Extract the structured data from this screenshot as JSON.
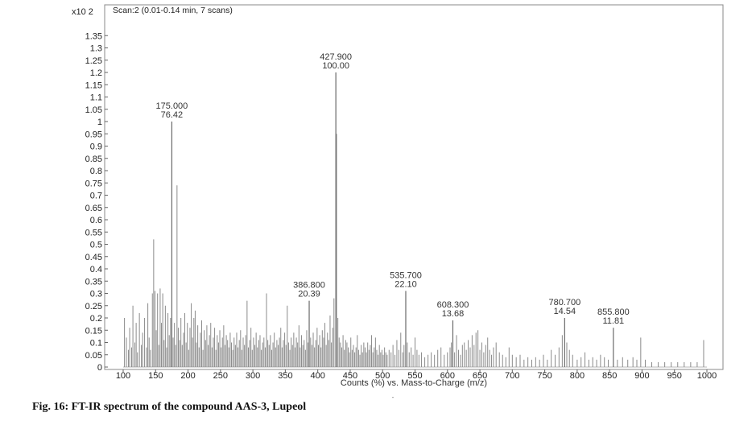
{
  "caption": "Fig. 16: FT-IR spectrum of the compound AAS-3, Lupeol",
  "chart_data": {
    "type": "bar",
    "title": "Scan:2 (0.01-0.14 min, 7 scans)",
    "xlabel": "Counts (%) vs. Mass-to-Charge (m/z)",
    "ylabel": "",
    "y_multiplier_label": "x10 2",
    "xlim": [
      100,
      1000
    ],
    "ylim": [
      0,
      1.4
    ],
    "x_ticks": [
      "100",
      "150",
      "200",
      "250",
      "300",
      "350",
      "400",
      "450",
      "500",
      "550",
      "600",
      "650",
      "700",
      "750",
      "800",
      "850",
      "900",
      "950",
      "1000"
    ],
    "y_ticks": [
      "0",
      "0.05",
      "0.1",
      "0.15",
      "0.2",
      "0.25",
      "0.3",
      "0.35",
      "0.4",
      "0.45",
      "0.5",
      "0.55",
      "0.6",
      "0.65",
      "0.7",
      "0.75",
      "0.8",
      "0.85",
      "0.9",
      "0.95",
      "1",
      "1.05",
      "1.1",
      "1.15",
      "1.2",
      "1.25",
      "1.3",
      "1.35"
    ],
    "annotated_peaks": [
      {
        "x": 175.0,
        "y": 1.0,
        "label_mz": "175.000",
        "label_int": "76.42"
      },
      {
        "x": 427.9,
        "y": 1.2,
        "label_mz": "427.900",
        "label_int": "100.00"
      },
      {
        "x": 386.8,
        "y": 0.27,
        "label_mz": "386.800",
        "label_int": "20.39"
      },
      {
        "x": 535.7,
        "y": 0.31,
        "label_mz": "535.700",
        "label_int": "22.10"
      },
      {
        "x": 608.3,
        "y": 0.19,
        "label_mz": "608.300",
        "label_int": "13.68"
      },
      {
        "x": 780.7,
        "y": 0.2,
        "label_mz": "780.700",
        "label_int": "14.54"
      },
      {
        "x": 855.8,
        "y": 0.16,
        "label_mz": "855.800",
        "label_int": "11.81"
      }
    ],
    "peaks": [
      [
        102,
        0.2
      ],
      [
        105,
        0.12
      ],
      [
        108,
        0.07
      ],
      [
        110,
        0.16
      ],
      [
        113,
        0.08
      ],
      [
        115,
        0.25
      ],
      [
        118,
        0.1
      ],
      [
        120,
        0.18
      ],
      [
        122,
        0.06
      ],
      [
        125,
        0.22
      ],
      [
        128,
        0.09
      ],
      [
        130,
        0.14
      ],
      [
        133,
        0.2
      ],
      [
        136,
        0.08
      ],
      [
        138,
        0.26
      ],
      [
        140,
        0.12
      ],
      [
        142,
        0.07
      ],
      [
        145,
        0.3
      ],
      [
        147,
        0.52
      ],
      [
        149,
        0.31
      ],
      [
        151,
        0.15
      ],
      [
        153,
        0.3
      ],
      [
        155,
        0.09
      ],
      [
        157,
        0.32
      ],
      [
        159,
        0.18
      ],
      [
        161,
        0.3
      ],
      [
        163,
        0.11
      ],
      [
        165,
        0.25
      ],
      [
        167,
        0.08
      ],
      [
        169,
        0.22
      ],
      [
        171,
        0.13
      ],
      [
        173,
        0.2
      ],
      [
        177,
        0.12
      ],
      [
        179,
        0.18
      ],
      [
        181,
        0.09
      ],
      [
        183,
        0.74
      ],
      [
        185,
        0.16
      ],
      [
        187,
        0.11
      ],
      [
        189,
        0.2
      ],
      [
        191,
        0.09
      ],
      [
        193,
        0.14
      ],
      [
        195,
        0.22
      ],
      [
        197,
        0.1
      ],
      [
        199,
        0.18
      ],
      [
        201,
        0.07
      ],
      [
        203,
        0.16
      ],
      [
        205,
        0.26
      ],
      [
        207,
        0.12
      ],
      [
        209,
        0.2
      ],
      [
        211,
        0.23
      ],
      [
        213,
        0.1
      ],
      [
        215,
        0.17
      ],
      [
        217,
        0.08
      ],
      [
        219,
        0.14
      ],
      [
        221,
        0.19
      ],
      [
        223,
        0.07
      ],
      [
        225,
        0.15
      ],
      [
        227,
        0.11
      ],
      [
        229,
        0.17
      ],
      [
        231,
        0.09
      ],
      [
        233,
        0.13
      ],
      [
        235,
        0.18
      ],
      [
        237,
        0.08
      ],
      [
        239,
        0.12
      ],
      [
        241,
        0.16
      ],
      [
        243,
        0.07
      ],
      [
        245,
        0.13
      ],
      [
        247,
        0.1
      ],
      [
        249,
        0.15
      ],
      [
        251,
        0.08
      ],
      [
        253,
        0.12
      ],
      [
        255,
        0.17
      ],
      [
        257,
        0.09
      ],
      [
        259,
        0.13
      ],
      [
        261,
        0.11
      ],
      [
        263,
        0.08
      ],
      [
        265,
        0.14
      ],
      [
        267,
        0.1
      ],
      [
        269,
        0.07
      ],
      [
        271,
        0.12
      ],
      [
        273,
        0.09
      ],
      [
        275,
        0.14
      ],
      [
        277,
        0.08
      ],
      [
        279,
        0.11
      ],
      [
        281,
        0.15
      ],
      [
        283,
        0.07
      ],
      [
        285,
        0.12
      ],
      [
        287,
        0.09
      ],
      [
        289,
        0.13
      ],
      [
        291,
        0.27
      ],
      [
        293,
        0.08
      ],
      [
        295,
        0.11
      ],
      [
        297,
        0.16
      ],
      [
        299,
        0.07
      ],
      [
        301,
        0.12
      ],
      [
        303,
        0.09
      ],
      [
        305,
        0.14
      ],
      [
        307,
        0.08
      ],
      [
        309,
        0.11
      ],
      [
        311,
        0.13
      ],
      [
        313,
        0.07
      ],
      [
        315,
        0.1
      ],
      [
        317,
        0.12
      ],
      [
        319,
        0.08
      ],
      [
        321,
        0.3
      ],
      [
        323,
        0.11
      ],
      [
        325,
        0.09
      ],
      [
        327,
        0.13
      ],
      [
        329,
        0.07
      ],
      [
        331,
        0.1
      ],
      [
        333,
        0.14
      ],
      [
        335,
        0.08
      ],
      [
        337,
        0.11
      ],
      [
        339,
        0.09
      ],
      [
        341,
        0.12
      ],
      [
        343,
        0.16
      ],
      [
        345,
        0.08
      ],
      [
        347,
        0.11
      ],
      [
        349,
        0.14
      ],
      [
        351,
        0.09
      ],
      [
        353,
        0.25
      ],
      [
        355,
        0.1
      ],
      [
        357,
        0.07
      ],
      [
        359,
        0.12
      ],
      [
        361,
        0.09
      ],
      [
        363,
        0.14
      ],
      [
        365,
        0.08
      ],
      [
        367,
        0.12
      ],
      [
        369,
        0.1
      ],
      [
        371,
        0.17
      ],
      [
        373,
        0.08
      ],
      [
        375,
        0.13
      ],
      [
        377,
        0.09
      ],
      [
        379,
        0.11
      ],
      [
        381,
        0.07
      ],
      [
        383,
        0.15
      ],
      [
        385,
        0.1
      ],
      [
        389,
        0.12
      ],
      [
        391,
        0.09
      ],
      [
        393,
        0.14
      ],
      [
        395,
        0.08
      ],
      [
        397,
        0.11
      ],
      [
        399,
        0.16
      ],
      [
        401,
        0.09
      ],
      [
        403,
        0.13
      ],
      [
        405,
        0.08
      ],
      [
        407,
        0.15
      ],
      [
        409,
        0.12
      ],
      [
        411,
        0.18
      ],
      [
        413,
        0.09
      ],
      [
        415,
        0.14
      ],
      [
        417,
        0.11
      ],
      [
        419,
        0.21
      ],
      [
        421,
        0.1
      ],
      [
        423,
        0.16
      ],
      [
        425,
        0.28
      ],
      [
        429,
        0.95
      ],
      [
        431,
        0.2
      ],
      [
        433,
        0.12
      ],
      [
        435,
        0.1
      ],
      [
        437,
        0.08
      ],
      [
        439,
        0.13
      ],
      [
        441,
        0.07
      ],
      [
        443,
        0.11
      ],
      [
        445,
        0.1
      ],
      [
        447,
        0.08
      ],
      [
        449,
        0.06
      ],
      [
        451,
        0.12
      ],
      [
        453,
        0.07
      ],
      [
        455,
        0.09
      ],
      [
        457,
        0.06
      ],
      [
        459,
        0.08
      ],
      [
        461,
        0.13
      ],
      [
        463,
        0.07
      ],
      [
        465,
        0.05
      ],
      [
        467,
        0.09
      ],
      [
        469,
        0.06
      ],
      [
        471,
        0.1
      ],
      [
        473,
        0.08
      ],
      [
        475,
        0.06
      ],
      [
        477,
        0.1
      ],
      [
        479,
        0.07
      ],
      [
        481,
        0.09
      ],
      [
        483,
        0.13
      ],
      [
        485,
        0.06
      ],
      [
        487,
        0.08
      ],
      [
        489,
        0.12
      ],
      [
        491,
        0.07
      ],
      [
        493,
        0.05
      ],
      [
        495,
        0.09
      ],
      [
        497,
        0.06
      ],
      [
        499,
        0.07
      ],
      [
        501,
        0.05
      ],
      [
        503,
        0.08
      ],
      [
        505,
        0.06
      ],
      [
        507,
        0.05
      ],
      [
        510,
        0.07
      ],
      [
        513,
        0.06
      ],
      [
        516,
        0.09
      ],
      [
        519,
        0.05
      ],
      [
        522,
        0.11
      ],
      [
        525,
        0.07
      ],
      [
        528,
        0.14
      ],
      [
        531,
        0.06
      ],
      [
        533,
        0.09
      ],
      [
        538,
        0.1
      ],
      [
        541,
        0.06
      ],
      [
        544,
        0.08
      ],
      [
        547,
        0.05
      ],
      [
        550,
        0.12
      ],
      [
        553,
        0.07
      ],
      [
        556,
        0.05
      ],
      [
        560,
        0.06
      ],
      [
        565,
        0.04
      ],
      [
        570,
        0.05
      ],
      [
        575,
        0.06
      ],
      [
        580,
        0.05
      ],
      [
        585,
        0.07
      ],
      [
        590,
        0.08
      ],
      [
        595,
        0.05
      ],
      [
        600,
        0.06
      ],
      [
        604,
        0.08
      ],
      [
        606,
        0.1
      ],
      [
        611,
        0.06
      ],
      [
        614,
        0.13
      ],
      [
        617,
        0.07
      ],
      [
        620,
        0.05
      ],
      [
        623,
        0.09
      ],
      [
        626,
        0.1
      ],
      [
        629,
        0.07
      ],
      [
        632,
        0.11
      ],
      [
        635,
        0.08
      ],
      [
        638,
        0.13
      ],
      [
        641,
        0.09
      ],
      [
        644,
        0.14
      ],
      [
        647,
        0.15
      ],
      [
        650,
        0.07
      ],
      [
        653,
        0.1
      ],
      [
        656,
        0.06
      ],
      [
        659,
        0.09
      ],
      [
        662,
        0.12
      ],
      [
        665,
        0.07
      ],
      [
        668,
        0.05
      ],
      [
        671,
        0.08
      ],
      [
        675,
        0.1
      ],
      [
        680,
        0.06
      ],
      [
        685,
        0.05
      ],
      [
        690,
        0.04
      ],
      [
        695,
        0.08
      ],
      [
        700,
        0.05
      ],
      [
        706,
        0.04
      ],
      [
        712,
        0.05
      ],
      [
        718,
        0.03
      ],
      [
        724,
        0.04
      ],
      [
        730,
        0.03
      ],
      [
        736,
        0.04
      ],
      [
        742,
        0.03
      ],
      [
        748,
        0.05
      ],
      [
        754,
        0.03
      ],
      [
        760,
        0.07
      ],
      [
        766,
        0.05
      ],
      [
        772,
        0.08
      ],
      [
        777,
        0.13
      ],
      [
        784,
        0.1
      ],
      [
        788,
        0.07
      ],
      [
        793,
        0.05
      ],
      [
        800,
        0.03
      ],
      [
        806,
        0.04
      ],
      [
        812,
        0.06
      ],
      [
        818,
        0.03
      ],
      [
        824,
        0.04
      ],
      [
        830,
        0.03
      ],
      [
        836,
        0.05
      ],
      [
        842,
        0.04
      ],
      [
        848,
        0.03
      ],
      [
        862,
        0.03
      ],
      [
        870,
        0.04
      ],
      [
        878,
        0.03
      ],
      [
        886,
        0.04
      ],
      [
        892,
        0.03
      ],
      [
        898,
        0.12
      ],
      [
        905,
        0.03
      ],
      [
        915,
        0.02
      ],
      [
        925,
        0.02
      ],
      [
        935,
        0.02
      ],
      [
        945,
        0.02
      ],
      [
        955,
        0.02
      ],
      [
        965,
        0.02
      ],
      [
        975,
        0.02
      ],
      [
        985,
        0.02
      ],
      [
        995,
        0.11
      ]
    ]
  }
}
